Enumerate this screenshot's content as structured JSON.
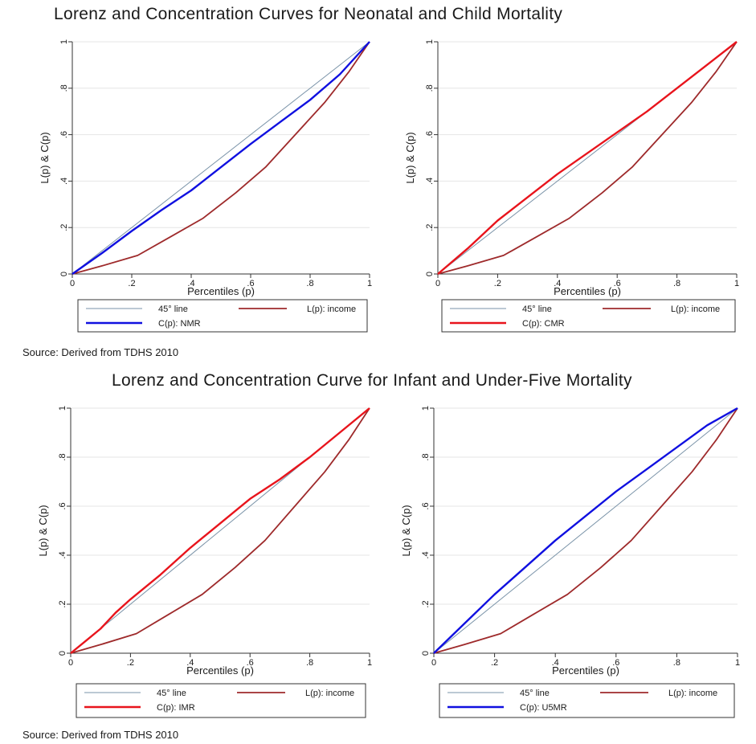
{
  "titles": {
    "top": "Lorenz and Concentration Curves for Neonatal and Child Mortality",
    "bottom": "Lorenz and Concentration Curve for Infant and Under-Five Mortality"
  },
  "source_top": "Source: Derived from TDHS 2010",
  "source_bottom": "Source: Derived from TDHS 2010",
  "colors": {
    "line45": "#7a93a8",
    "income": "#9e2a2b",
    "blue": "#1010e0",
    "red": "#e8141c",
    "grid": "#e6e6e6"
  },
  "chart_data": [
    {
      "type": "line",
      "xlabel": "Percentiles (p)",
      "ylabel": "L(p) & C(p)",
      "xlim": [
        0,
        1
      ],
      "ylim": [
        0,
        1
      ],
      "xticks": [
        "0",
        ".2",
        ".4",
        ".6",
        ".8",
        "1"
      ],
      "yticks": [
        "0",
        ".2",
        ".4",
        ".6",
        ".8",
        "1"
      ],
      "legend": "below",
      "series": [
        {
          "name": "45° line",
          "color": "line45",
          "x": [
            0,
            1
          ],
          "y": [
            0,
            1
          ]
        },
        {
          "name": "L(p): income",
          "color": "income",
          "x": [
            0,
            0.1,
            0.22,
            0.33,
            0.44,
            0.55,
            0.65,
            0.75,
            0.85,
            0.93,
            1
          ],
          "y": [
            0,
            0.035,
            0.08,
            0.16,
            0.24,
            0.35,
            0.46,
            0.6,
            0.74,
            0.87,
            1
          ]
        },
        {
          "name": "C(p): NMR",
          "color": "blue",
          "x": [
            0,
            0.1,
            0.2,
            0.3,
            0.4,
            0.5,
            0.6,
            0.7,
            0.8,
            0.9,
            1
          ],
          "y": [
            0,
            0.09,
            0.185,
            0.275,
            0.36,
            0.46,
            0.56,
            0.655,
            0.75,
            0.86,
            1
          ]
        }
      ]
    },
    {
      "type": "line",
      "xlabel": "Percentiles (p)",
      "ylabel": "L(p) & C(p)",
      "xlim": [
        0,
        1
      ],
      "ylim": [
        0,
        1
      ],
      "xticks": [
        "0",
        ".2",
        ".4",
        ".6",
        ".8",
        "1"
      ],
      "yticks": [
        "0",
        ".2",
        ".4",
        ".6",
        ".8",
        "1"
      ],
      "legend": "below",
      "series": [
        {
          "name": "45° line",
          "color": "line45",
          "x": [
            0,
            1
          ],
          "y": [
            0,
            1
          ]
        },
        {
          "name": "L(p): income",
          "color": "income",
          "x": [
            0,
            0.1,
            0.22,
            0.33,
            0.44,
            0.55,
            0.65,
            0.75,
            0.85,
            0.93,
            1
          ],
          "y": [
            0,
            0.035,
            0.08,
            0.16,
            0.24,
            0.35,
            0.46,
            0.6,
            0.74,
            0.87,
            1
          ]
        },
        {
          "name": "C(p): CMR",
          "color": "red",
          "x": [
            0,
            0.1,
            0.2,
            0.3,
            0.4,
            0.5,
            0.6,
            0.7,
            0.8,
            0.9,
            1
          ],
          "y": [
            0,
            0.11,
            0.23,
            0.33,
            0.43,
            0.52,
            0.61,
            0.7,
            0.8,
            0.9,
            1
          ]
        }
      ]
    },
    {
      "type": "line",
      "xlabel": "Percentiles (p)",
      "ylabel": "L(p) & C(p)",
      "xlim": [
        0,
        1
      ],
      "ylim": [
        0,
        1
      ],
      "xticks": [
        "0",
        ".2",
        ".4",
        ".6",
        ".8",
        "1"
      ],
      "yticks": [
        "0",
        ".2",
        ".4",
        ".6",
        ".8",
        "1"
      ],
      "legend": "below",
      "series": [
        {
          "name": "45° line",
          "color": "line45",
          "x": [
            0,
            1
          ],
          "y": [
            0,
            1
          ]
        },
        {
          "name": "L(p): income",
          "color": "income",
          "x": [
            0,
            0.1,
            0.22,
            0.33,
            0.44,
            0.55,
            0.65,
            0.75,
            0.85,
            0.93,
            1
          ],
          "y": [
            0,
            0.035,
            0.08,
            0.16,
            0.24,
            0.35,
            0.46,
            0.6,
            0.74,
            0.87,
            1
          ]
        },
        {
          "name": "C(p): IMR",
          "color": "red",
          "x": [
            0,
            0.05,
            0.1,
            0.15,
            0.2,
            0.3,
            0.4,
            0.5,
            0.6,
            0.7,
            0.8,
            0.9,
            1
          ],
          "y": [
            0,
            0.05,
            0.1,
            0.165,
            0.22,
            0.32,
            0.43,
            0.53,
            0.63,
            0.71,
            0.8,
            0.9,
            1
          ]
        }
      ]
    },
    {
      "type": "line",
      "xlabel": "Percentiles (p)",
      "ylabel": "L(p) & C(p)",
      "xlim": [
        0,
        1
      ],
      "ylim": [
        0,
        1
      ],
      "xticks": [
        "0",
        ".2",
        ".4",
        ".6",
        ".8",
        "1"
      ],
      "yticks": [
        "0",
        ".2",
        ".4",
        ".6",
        ".8",
        "1"
      ],
      "legend": "below",
      "series": [
        {
          "name": "45° line",
          "color": "line45",
          "x": [
            0,
            1
          ],
          "y": [
            0,
            1
          ]
        },
        {
          "name": "L(p): income",
          "color": "income",
          "x": [
            0,
            0.1,
            0.22,
            0.33,
            0.44,
            0.55,
            0.65,
            0.75,
            0.85,
            0.93,
            1
          ],
          "y": [
            0,
            0.035,
            0.08,
            0.16,
            0.24,
            0.35,
            0.46,
            0.6,
            0.74,
            0.87,
            1
          ]
        },
        {
          "name": "C(p): U5MR",
          "color": "blue",
          "x": [
            0,
            0.1,
            0.2,
            0.3,
            0.4,
            0.5,
            0.6,
            0.7,
            0.8,
            0.9,
            1
          ],
          "y": [
            0,
            0.12,
            0.24,
            0.35,
            0.46,
            0.56,
            0.66,
            0.75,
            0.84,
            0.93,
            1
          ]
        }
      ]
    }
  ]
}
